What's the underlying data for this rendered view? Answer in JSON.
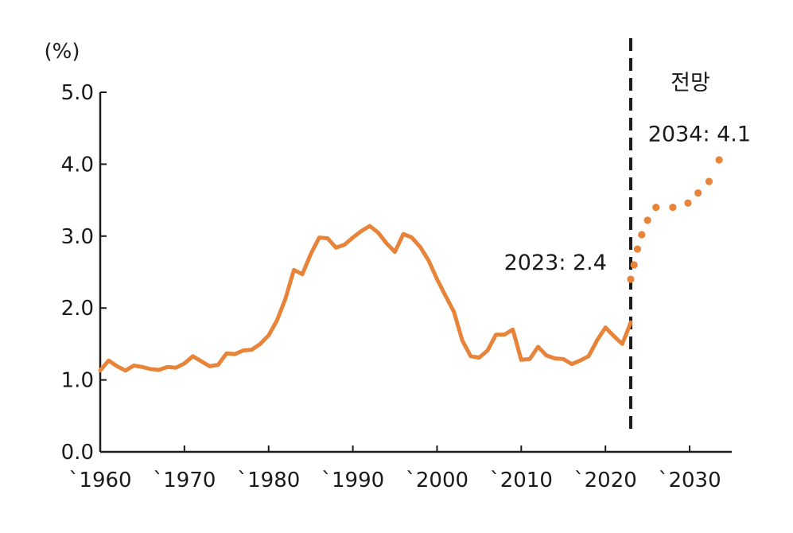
{
  "chart_data": {
    "type": "line",
    "unit_label": "(%)",
    "forecast_label": "전망",
    "xlim": [
      1960,
      2035
    ],
    "ylim": [
      0,
      5
    ],
    "y_ticks": [
      "0.0",
      "1.0",
      "2.0",
      "3.0",
      "4.0",
      "5.0"
    ],
    "x_ticks": [
      {
        "year": 1960,
        "label": "`1960"
      },
      {
        "year": 1970,
        "label": "`1970"
      },
      {
        "year": 1980,
        "label": "`1980"
      },
      {
        "year": 1990,
        "label": "`1990"
      },
      {
        "year": 2000,
        "label": "`2000"
      },
      {
        "year": 2010,
        "label": "`2010"
      },
      {
        "year": 2020,
        "label": "`2020"
      },
      {
        "year": 2030,
        "label": "`2030"
      }
    ],
    "forecast_start": 2023,
    "accent_color": "#E8843A",
    "series": [
      {
        "style": "solid",
        "x": [
          1960,
          1961,
          1962,
          1963,
          1964,
          1965,
          1966,
          1967,
          1968,
          1969,
          1970,
          1971,
          1972,
          1973,
          1974,
          1975,
          1976,
          1977,
          1978,
          1979,
          1980,
          1981,
          1982,
          1983,
          1984,
          1985,
          1986,
          1987,
          1988,
          1989,
          1990,
          1991,
          1992,
          1993,
          1994,
          1995,
          1996,
          1997,
          1998,
          1999,
          2000,
          2001,
          2002,
          2003,
          2004,
          2005,
          2006,
          2007,
          2008,
          2009,
          2010,
          2011,
          2012,
          2013,
          2014,
          2015,
          2016,
          2017,
          2018,
          2019,
          2020,
          2021,
          2022,
          2023
        ],
        "y": [
          1.13,
          1.27,
          1.19,
          1.13,
          1.2,
          1.18,
          1.15,
          1.14,
          1.18,
          1.17,
          1.23,
          1.33,
          1.26,
          1.19,
          1.21,
          1.37,
          1.36,
          1.41,
          1.42,
          1.5,
          1.62,
          1.83,
          2.13,
          2.53,
          2.47,
          2.75,
          2.98,
          2.97,
          2.84,
          2.88,
          2.98,
          3.07,
          3.14,
          3.05,
          2.9,
          2.78,
          3.03,
          2.98,
          2.85,
          2.66,
          2.4,
          2.17,
          1.95,
          1.55,
          1.33,
          1.31,
          1.41,
          1.63,
          1.63,
          1.7,
          1.28,
          1.29,
          1.46,
          1.34,
          1.3,
          1.29,
          1.22,
          1.27,
          1.33,
          1.55,
          1.73,
          1.61,
          1.5,
          1.8
        ]
      },
      {
        "style": "dotted",
        "x": [
          2023.0,
          2023.4,
          2023.8,
          2024.3,
          2025.0,
          2026.0,
          2028.0,
          2029.8,
          2031.0,
          2032.3,
          2033.5
        ],
        "y": [
          2.4,
          2.6,
          2.82,
          3.02,
          3.22,
          3.4,
          3.4,
          3.46,
          3.6,
          3.76,
          4.06
        ]
      }
    ],
    "annotations": [
      {
        "text": "2023: 2.4",
        "x": 2023,
        "y": 2.4,
        "placement": "left-above"
      },
      {
        "text": "2034: 4.1",
        "x": 2034,
        "y": 4.1,
        "placement": "above"
      }
    ]
  }
}
